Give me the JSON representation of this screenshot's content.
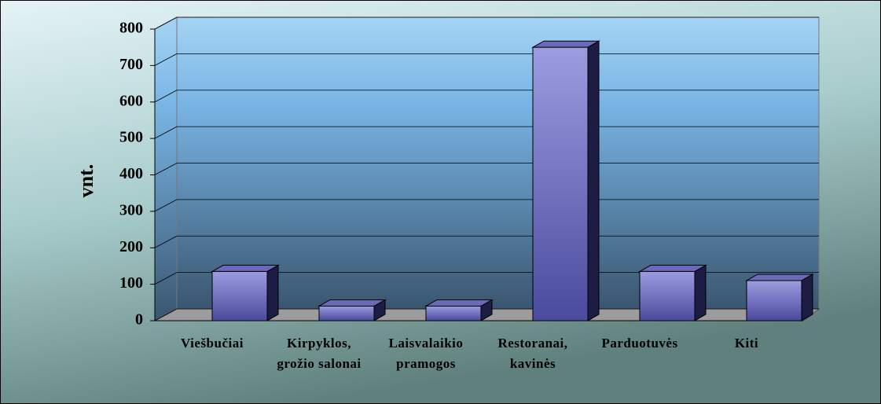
{
  "chart_data": {
    "type": "bar3d",
    "y_label": "vnt.",
    "categories": [
      "Viešbučiai",
      "Kirpyklos, grožio salonai",
      "Laisvalaikio pramogos",
      "Restoranai, kavinės",
      "Parduotuvės",
      "Kiti"
    ],
    "values": [
      135,
      40,
      40,
      750,
      135,
      110
    ],
    "color": "#7a7ad0",
    "ylim": [
      0,
      800
    ],
    "yticks": [
      0,
      100,
      200,
      300,
      400,
      500,
      600,
      700,
      800
    ],
    "grid": true
  }
}
